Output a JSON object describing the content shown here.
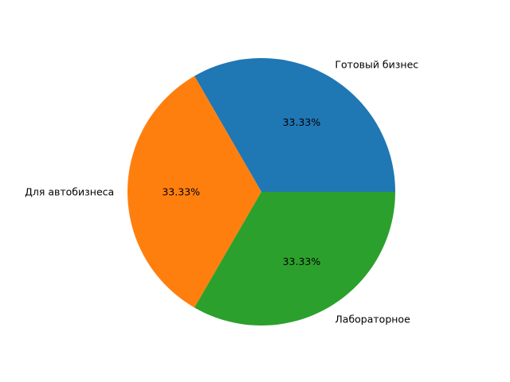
{
  "chart_data": {
    "type": "pie",
    "slices": [
      {
        "label": "Готовый бизнес",
        "value": 33.33,
        "pct_label": "33.33%",
        "color": "#1f77b4"
      },
      {
        "label": "Для автобизнеса",
        "value": 33.33,
        "pct_label": "33.33%",
        "color": "#ff7f0e"
      },
      {
        "label": "Лабораторное",
        "value": 33.33,
        "pct_label": "33.33%",
        "color": "#2ca02c"
      }
    ],
    "start_angle_deg": 0,
    "direction": "counterclockwise",
    "legend": "none"
  }
}
